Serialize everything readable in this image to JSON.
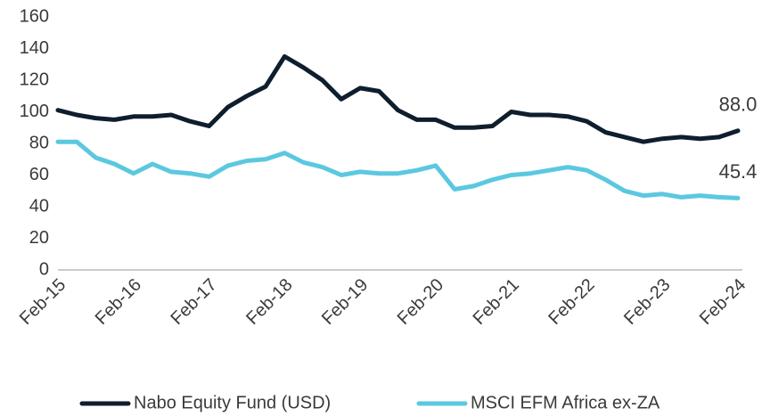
{
  "chart_data": {
    "type": "line",
    "categories": [
      "Feb-15",
      null,
      null,
      null,
      "Feb-16",
      null,
      null,
      null,
      "Feb-17",
      null,
      null,
      null,
      "Feb-18",
      null,
      null,
      null,
      "Feb-19",
      null,
      null,
      null,
      "Feb-20",
      null,
      null,
      null,
      "Feb-21",
      null,
      null,
      null,
      "Feb-22",
      null,
      null,
      null,
      "Feb-23",
      null,
      null,
      null,
      "Feb-24"
    ],
    "series": [
      {
        "name": "Nabo Equity Fund (USD)",
        "color": "#0f1e2e",
        "values": [
          101,
          98,
          96,
          95,
          97,
          97,
          98,
          94,
          91,
          103,
          110,
          116,
          135,
          128,
          120,
          108,
          115,
          113,
          101,
          95,
          95,
          90,
          90,
          91,
          100,
          98,
          98,
          97,
          94,
          87,
          84,
          81,
          83,
          84,
          83,
          84,
          88.0
        ],
        "value_labels": [
          null,
          null,
          null,
          null,
          null,
          null,
          null,
          null,
          null,
          null,
          null,
          null,
          null,
          null,
          null,
          null,
          null,
          null,
          null,
          null,
          null,
          null,
          null,
          null,
          null,
          null,
          null,
          null,
          null,
          null,
          null,
          null,
          null,
          null,
          null,
          null,
          "88.0"
        ]
      },
      {
        "name": "MSCI EFM Africa ex-ZA",
        "color": "#5bc8e0",
        "values": [
          81,
          81,
          71,
          67,
          61,
          67,
          62,
          61,
          59,
          66,
          69,
          70,
          74,
          68,
          65,
          60,
          62,
          61,
          61,
          63,
          66,
          51,
          53,
          57,
          60,
          61,
          63,
          65,
          63,
          57,
          50,
          47,
          48,
          46,
          47,
          46,
          45.4
        ],
        "value_labels": [
          null,
          null,
          null,
          null,
          null,
          null,
          null,
          null,
          null,
          null,
          null,
          null,
          null,
          null,
          null,
          null,
          null,
          null,
          null,
          null,
          null,
          null,
          null,
          null,
          null,
          null,
          null,
          null,
          null,
          null,
          null,
          null,
          null,
          null,
          null,
          null,
          "45.4"
        ]
      }
    ],
    "ylim": [
      0,
      160
    ],
    "yticks": [
      0,
      20,
      40,
      60,
      80,
      100,
      120,
      140,
      160
    ],
    "grid": false
  }
}
